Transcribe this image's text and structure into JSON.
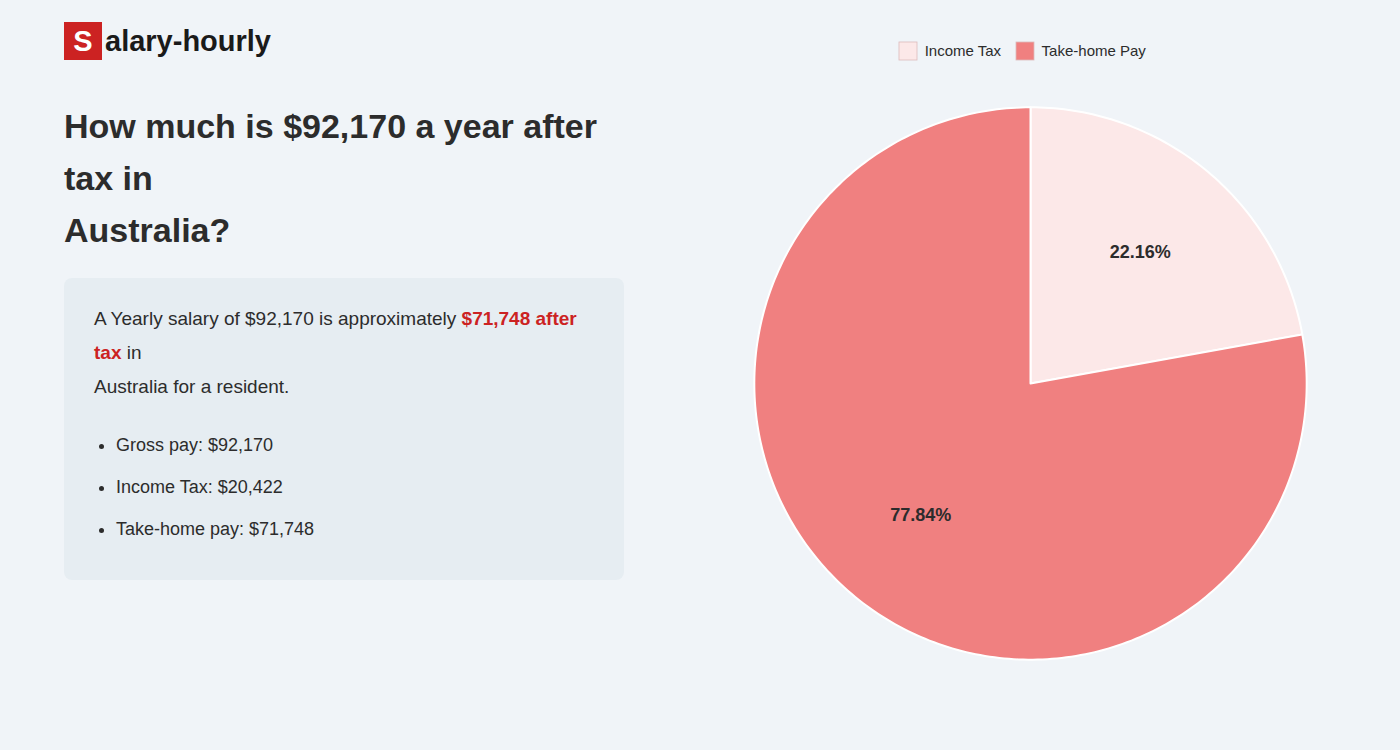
{
  "chart_data": {
    "type": "pie",
    "logo": {
      "boxed": "S",
      "rest": "alary-hourly",
      "color": "#cc2222"
    },
    "title": "How much is $92,170 a year after tax in\nAustralia?",
    "annotations": [
      [
        {
          "text": "A Yearly salary of $92,170 is approximately "
        },
        {
          "text": "$71,748 after tax",
          "color": "#cc2222"
        },
        {
          "text": " in"
        }
      ],
      [
        {
          "text": "Australia for a resident."
        }
      ]
    ],
    "bullets": [
      "Gross pay: $92,170",
      "Income Tax: $20,422",
      "Take-home pay: $71,748"
    ],
    "categories": [
      "Income Tax",
      "Take-home Pay"
    ],
    "values": [
      22.16,
      77.84
    ],
    "value_labels": [
      "22.16%",
      "77.84%"
    ],
    "colors": [
      "#fce8e8",
      "#f08080"
    ],
    "data_labels": true,
    "legend": "top"
  }
}
